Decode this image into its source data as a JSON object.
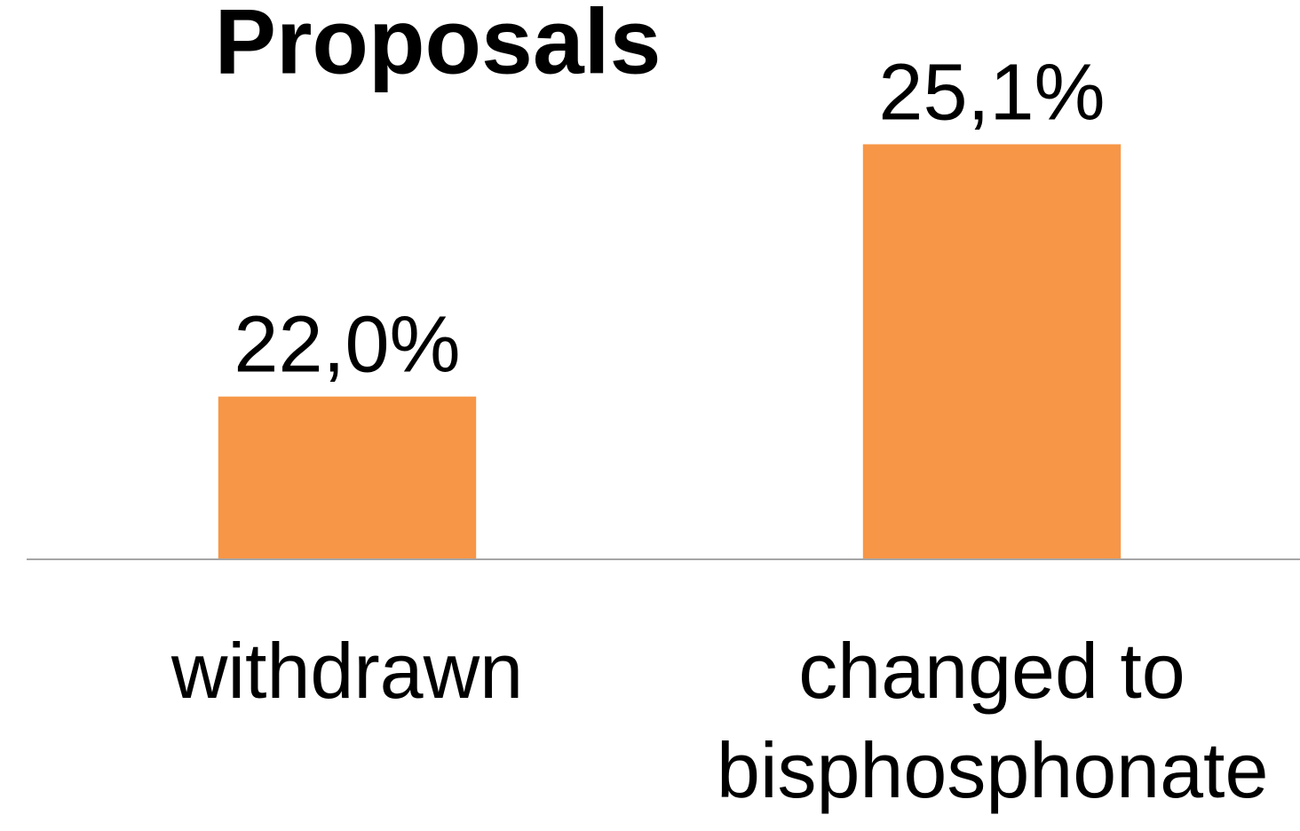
{
  "chart_data": {
    "type": "bar",
    "title": "Proposals",
    "categories": [
      "withdrawn",
      "changed to bisphosphonate"
    ],
    "values": [
      22.0,
      25.1
    ],
    "value_labels": [
      "22,0%",
      "25,1%"
    ],
    "color": "#f79646",
    "ylim": [
      20,
      26
    ]
  }
}
